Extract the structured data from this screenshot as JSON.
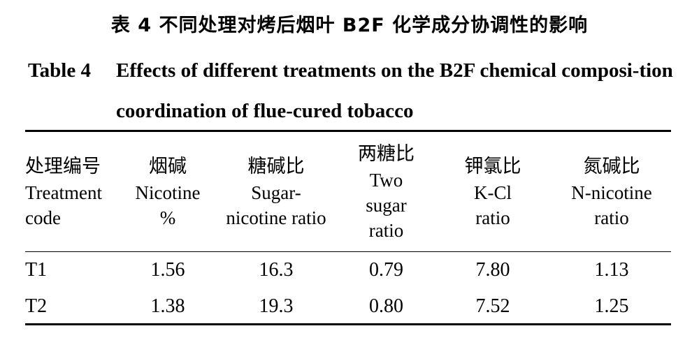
{
  "caption": {
    "cn": "表 4   不同处理对烤后烟叶 B2F 化学成分协调性的影响",
    "en_num": "Table 4",
    "en_text": "Effects of different treatments on the B2F chemical composi-tion coordination of flue-cured tobacco"
  },
  "table": {
    "headers": [
      {
        "zh": "处理编号",
        "lines": [
          "Treatment",
          "code"
        ]
      },
      {
        "zh": "烟碱",
        "lines": [
          "Nicotine",
          "%"
        ]
      },
      {
        "zh": "糖碱比",
        "lines": [
          "Sugar-",
          "nicotine ratio"
        ]
      },
      {
        "zh": "两糖比",
        "lines": [
          "Two",
          "sugar",
          "ratio"
        ]
      },
      {
        "zh": "钾氯比",
        "lines": [
          "K-Cl",
          "ratio"
        ]
      },
      {
        "zh": "氮碱比",
        "lines": [
          "N-nicotine",
          "ratio"
        ]
      }
    ],
    "rows": [
      [
        "T1",
        "1.56",
        "16.3",
        "0.79",
        "7.80",
        "1.13"
      ],
      [
        "T2",
        "1.38",
        "19.3",
        "0.80",
        "7.52",
        "1.25"
      ]
    ]
  }
}
